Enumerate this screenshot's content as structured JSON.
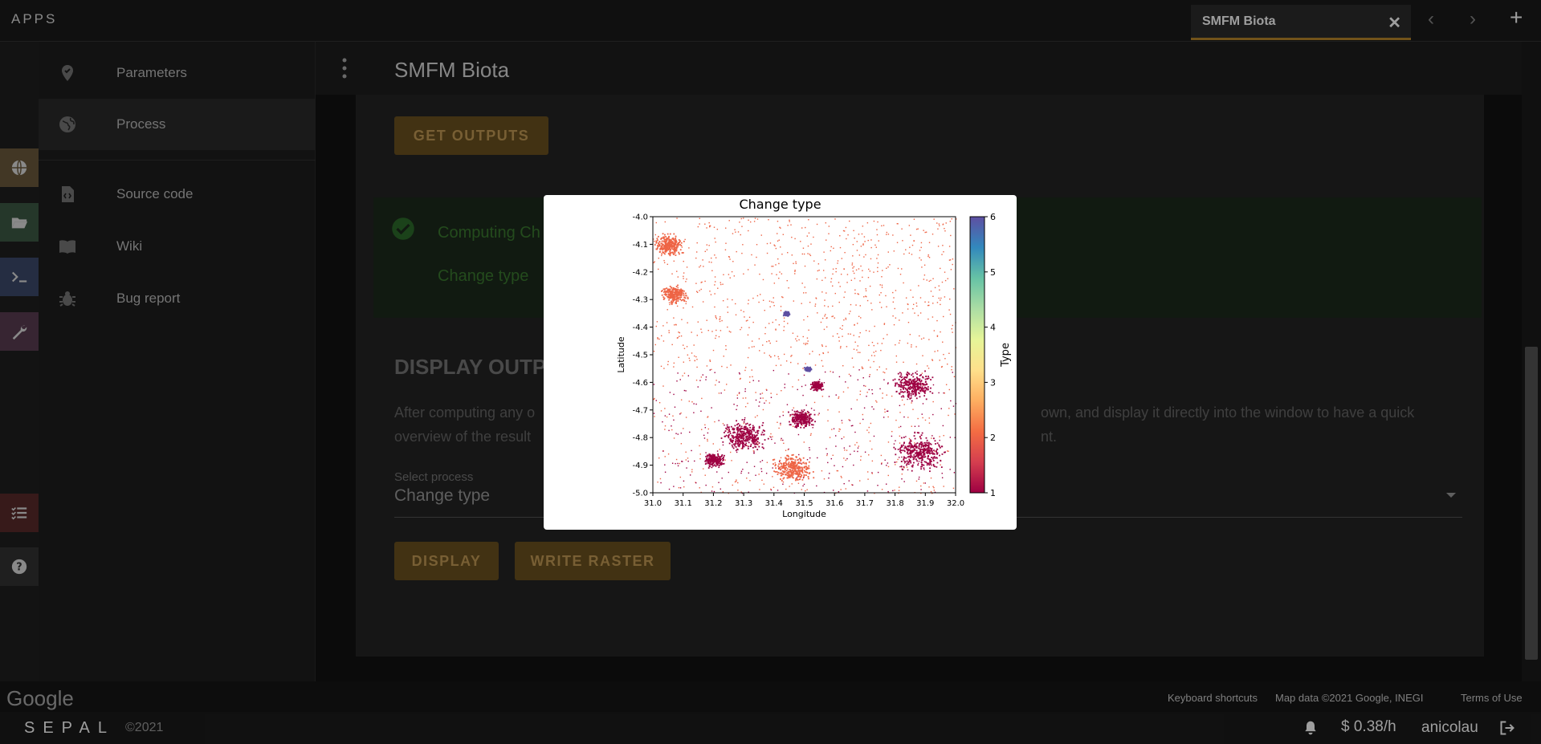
{
  "topbar": {
    "apps_label": "APPS",
    "tab_title": "SMFM Biota",
    "close_glyph": "✕",
    "prev_glyph": "‹",
    "next_glyph": "›",
    "add_glyph": "+"
  },
  "sidenav": {
    "items": [
      {
        "label": "Parameters",
        "icon": "map-pin-check-icon"
      },
      {
        "label": "Process",
        "icon": "globe-icon"
      },
      {
        "label": "Source code",
        "icon": "code-file-icon"
      },
      {
        "label": "Wiki",
        "icon": "book-icon"
      },
      {
        "label": "Bug report",
        "icon": "bug-icon"
      }
    ]
  },
  "main": {
    "app_title": "SMFM Biota",
    "get_outputs_label": "GET OUTPUTS",
    "alert_line1": "Computing Ch",
    "alert_line2": "Change type",
    "section_heading": "DISPLAY OUTP",
    "para_line1_left": "After computing any o",
    "para_line1_right": "own, and display it directly into the window to have a quick",
    "para_line2_left": "overview of the result",
    "para_line2_right": "nt.",
    "select_label": "Select process",
    "select_value": "Change type",
    "display_label": "DISPLAY",
    "write_raster_label": "WRITE RASTER"
  },
  "mapbar": {
    "google": "Google",
    "shortcuts": "Keyboard shortcuts",
    "mapdata": "Map data ©2021 Google, INEGI",
    "terms": "Terms of Use"
  },
  "footer": {
    "logo": "SEPAL",
    "copyright": "©2021",
    "cost": "$ 0.38/h",
    "user": "anicolau"
  },
  "colors": {
    "accent": "#b8862a",
    "button_bg": "#6b5220",
    "success": "#3a7a2f"
  },
  "chart_data": {
    "type": "heatmap",
    "title": "Change type",
    "xlabel": "Longitude",
    "ylabel": "Latitude",
    "xlim": [
      31.0,
      32.0
    ],
    "ylim": [
      -5.0,
      -4.0
    ],
    "xticks": [
      "31.0",
      "31.1",
      "31.2",
      "31.3",
      "31.4",
      "31.5",
      "31.6",
      "31.7",
      "31.8",
      "31.9",
      "32.0"
    ],
    "yticks": [
      "-4.0",
      "-4.1",
      "-4.2",
      "-4.3",
      "-4.4",
      "-4.5",
      "-4.6",
      "-4.7",
      "-4.8",
      "-4.9",
      "-5.0"
    ],
    "colorbar": {
      "label": "Type",
      "min": 1,
      "max": 6,
      "ticks": [
        "1",
        "2",
        "3",
        "4",
        "5",
        "6"
      ],
      "colormap": "Spectral"
    },
    "clusters": [
      {
        "lon": 31.07,
        "lat": -4.28,
        "type": 2,
        "spread": 0.04
      },
      {
        "lon": 31.05,
        "lat": -4.1,
        "type": 2,
        "spread": 0.05
      },
      {
        "lon": 31.54,
        "lat": -4.61,
        "type": 1,
        "spread": 0.02
      },
      {
        "lon": 31.86,
        "lat": -4.61,
        "type": 1,
        "spread": 0.06
      },
      {
        "lon": 31.49,
        "lat": -4.73,
        "type": 1,
        "spread": 0.04
      },
      {
        "lon": 31.3,
        "lat": -4.79,
        "type": 1,
        "spread": 0.07
      },
      {
        "lon": 31.46,
        "lat": -4.91,
        "type": 2,
        "spread": 0.06
      },
      {
        "lon": 31.2,
        "lat": -4.88,
        "type": 1,
        "spread": 0.03
      },
      {
        "lon": 31.88,
        "lat": -4.85,
        "type": 1,
        "spread": 0.08
      },
      {
        "lon": 31.51,
        "lat": -4.55,
        "type": 6,
        "spread": 0.01
      },
      {
        "lon": 31.44,
        "lat": -4.35,
        "type": 6,
        "spread": 0.01
      }
    ]
  }
}
